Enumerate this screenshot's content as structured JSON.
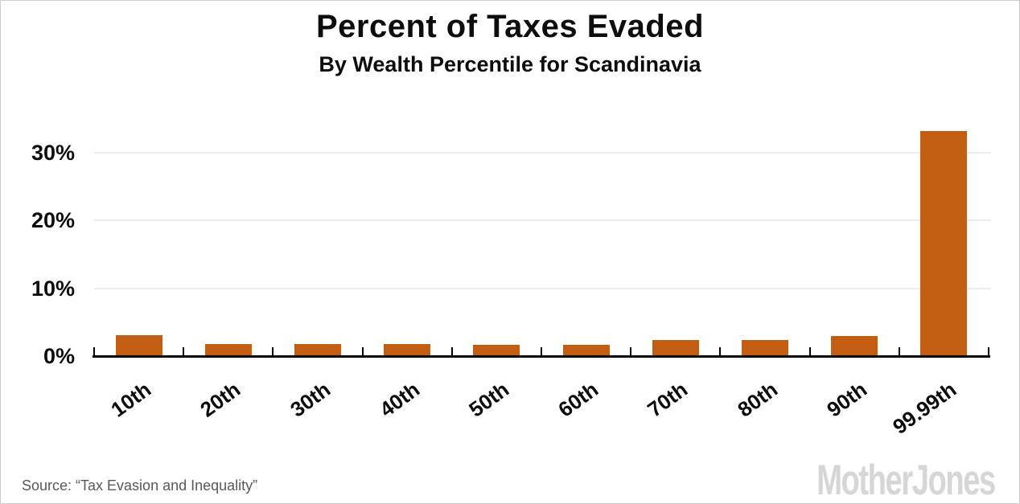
{
  "header": {
    "title": "Percent of Taxes Evaded",
    "subtitle": "By Wealth Percentile for Scandinavia"
  },
  "chart_data": {
    "type": "bar",
    "title": "Percent of Taxes Evaded",
    "subtitle": "By Wealth Percentile for Scandinavia",
    "categories": [
      "10th",
      "20th",
      "30th",
      "40th",
      "50th",
      "60th",
      "70th",
      "80th",
      "90th",
      "99.99th"
    ],
    "values": [
      3.0,
      1.7,
      1.6,
      1.6,
      1.5,
      1.5,
      2.2,
      2.2,
      2.8,
      33.1
    ],
    "xlabel": "",
    "ylabel": "",
    "y_ticks": [
      {
        "value": 0,
        "label": "0%"
      },
      {
        "value": 10,
        "label": "10%"
      },
      {
        "value": 20,
        "label": "20%"
      },
      {
        "value": 30,
        "label": "30%"
      }
    ],
    "ylim": [
      0,
      35
    ],
    "grid": "horizontal",
    "legend": "none",
    "bar_color": "#C35D12",
    "gridline_color": "#EBEBEB",
    "axis_color": "#000000",
    "label_color": "#0d0d0d"
  },
  "footer": {
    "source": "Source: “Tax Evasion and Inequality”",
    "brand": "MotherJones"
  }
}
